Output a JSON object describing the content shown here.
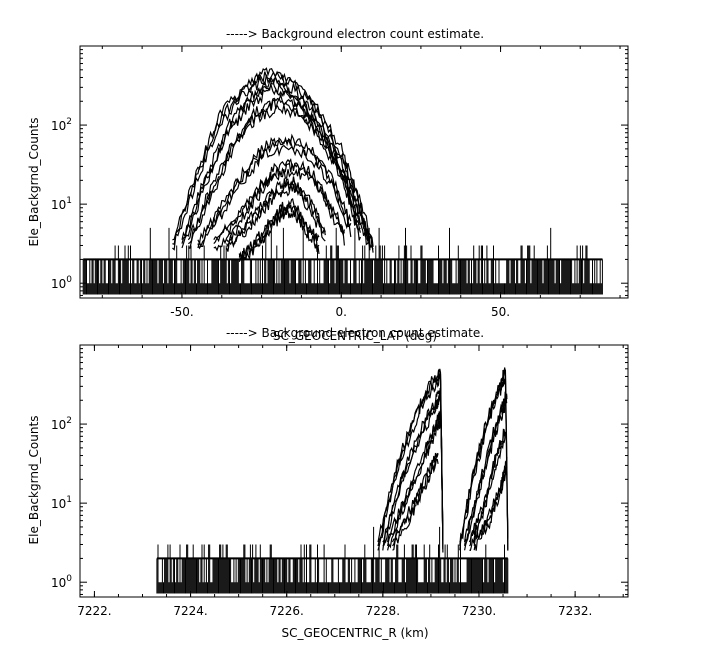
{
  "chart_data": [
    {
      "type": "line",
      "title": "-----> Background electron count estimate.",
      "xlabel": "SC_GEOCENTRIC_LAT (deg)",
      "ylabel": "Ele_Backgrnd_Counts",
      "xlim": [
        -82,
        90
      ],
      "ylim": [
        0.65,
        1000
      ],
      "yscale": "log",
      "xticks": [
        -50,
        0,
        50
      ],
      "xtick_labels": [
        "-50.",
        "0.",
        "50."
      ],
      "yticks": [
        1,
        10,
        100
      ],
      "ytick_labels": [
        "10^0",
        "10^1",
        "10^2"
      ],
      "grid": false,
      "background_noise": {
        "x_range": [
          -81,
          82
        ],
        "levels": [
          1,
          2,
          3
        ],
        "max_spike": 5
      },
      "series": [
        {
          "x": [
            -53,
            -45,
            -38,
            -30,
            -23,
            -15,
            -8,
            0,
            5,
            10
          ],
          "y": [
            3,
            25,
            120,
            300,
            450,
            330,
            160,
            45,
            12,
            3
          ]
        },
        {
          "x": [
            -50,
            -43,
            -36,
            -29,
            -22,
            -15,
            -8,
            0,
            5,
            9
          ],
          "y": [
            3,
            18,
            80,
            200,
            320,
            240,
            110,
            30,
            8,
            3
          ]
        },
        {
          "x": [
            -48,
            -41,
            -34,
            -27,
            -20,
            -13,
            -6,
            1,
            6
          ],
          "y": [
            3,
            14,
            55,
            130,
            190,
            150,
            70,
            20,
            4
          ]
        },
        {
          "x": [
            -45,
            -38,
            -31,
            -24,
            -17,
            -10,
            -3,
            3
          ],
          "y": [
            3,
            8,
            22,
            50,
            60,
            45,
            20,
            5
          ]
        },
        {
          "x": [
            -40,
            -33,
            -27,
            -21,
            -15,
            -9,
            -4,
            1
          ],
          "y": [
            3,
            6,
            13,
            25,
            30,
            22,
            10,
            4
          ]
        },
        {
          "x": [
            -36,
            -30,
            -25,
            -20,
            -15,
            -10,
            -5
          ],
          "y": [
            3,
            5,
            9,
            15,
            18,
            10,
            4
          ]
        },
        {
          "x": [
            -32,
            -27,
            -23,
            -19,
            -15,
            -11,
            -7
          ],
          "y": [
            2,
            3,
            5,
            8,
            9,
            5,
            3
          ]
        }
      ]
    },
    {
      "type": "line",
      "title": "-----> Background electron count estimate.",
      "xlabel": "SC_GEOCENTRIC_R (km)",
      "ylabel": "Ele_Backgrnd_Counts",
      "xlim": [
        7221.7,
        7233.1
      ],
      "ylim": [
        0.65,
        1000
      ],
      "yscale": "log",
      "xticks": [
        7222,
        7224,
        7226,
        7228,
        7230,
        7232
      ],
      "xtick_labels": [
        "7222.",
        "7224.",
        "7226.",
        "7228.",
        "7230.",
        "7232."
      ],
      "yticks": [
        1,
        10,
        100
      ],
      "ytick_labels": [
        "10^0",
        "10^1",
        "10^2"
      ],
      "grid": false,
      "background_noise": {
        "x_range": [
          7223.3,
          7230.6
        ],
        "levels": [
          1,
          2,
          3
        ],
        "max_spike": 5
      },
      "series": [
        {
          "x": [
            7227.9,
            7228.3,
            7228.7,
            7229.0,
            7229.2,
            7229.25
          ],
          "y": [
            3,
            30,
            130,
            300,
            420,
            3
          ]
        },
        {
          "x": [
            7228.0,
            7228.4,
            7228.8,
            7229.1,
            7229.2,
            7229.25
          ],
          "y": [
            3,
            20,
            80,
            180,
            250,
            3
          ]
        },
        {
          "x": [
            7228.1,
            7228.5,
            7228.9,
            7229.1,
            7229.2
          ],
          "y": [
            3,
            12,
            45,
            90,
            120
          ]
        },
        {
          "x": [
            7228.2,
            7228.6,
            7228.9,
            7229.15
          ],
          "y": [
            3,
            8,
            20,
            40
          ]
        },
        {
          "x": [
            7229.6,
            7229.9,
            7230.2,
            7230.45,
            7230.55,
            7230.6
          ],
          "y": [
            3,
            25,
            120,
            300,
            450,
            3
          ]
        },
        {
          "x": [
            7229.7,
            7230.0,
            7230.3,
            7230.5,
            7230.58
          ],
          "y": [
            3,
            15,
            70,
            160,
            230
          ]
        },
        {
          "x": [
            7229.8,
            7230.1,
            7230.35,
            7230.55
          ],
          "y": [
            3,
            9,
            35,
            80
          ]
        },
        {
          "x": [
            7229.9,
            7230.2,
            7230.45,
            7230.58
          ],
          "y": [
            3,
            6,
            15,
            30
          ]
        }
      ]
    }
  ]
}
